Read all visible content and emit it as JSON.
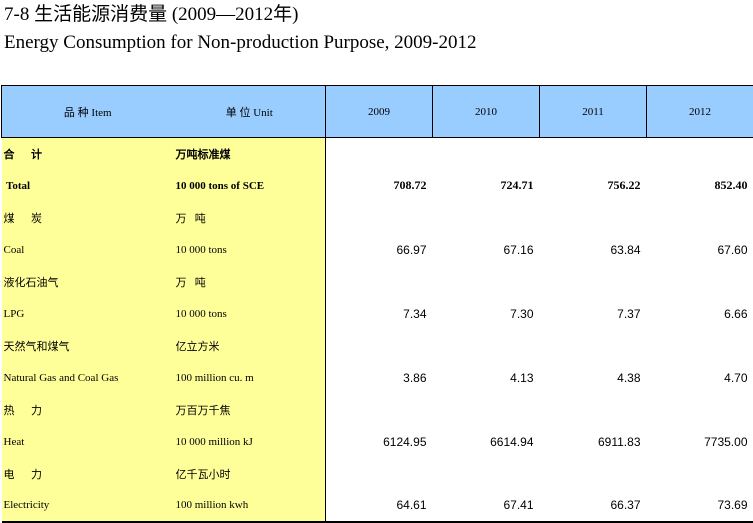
{
  "title_cn": "7-8  生活能源消费量 (2009—2012年)",
  "title_en": "Energy Consumption for Non-production Purpose, 2009-2012",
  "header": {
    "item": "品 种 Item",
    "unit": "单 位  Unit",
    "years": [
      "2009",
      "2010",
      "2011",
      "2012"
    ]
  },
  "rows": [
    {
      "item": "合      计",
      "unit": "万吨标准煤",
      "values": [
        "",
        "",
        "",
        ""
      ],
      "bold": true
    },
    {
      "item": " Total",
      "unit": "10 000 tons of SCE",
      "values": [
        "708.72",
        "724.71",
        "756.22",
        "852.40"
      ],
      "bold": true
    },
    {
      "item": "煤      炭",
      "unit": "万   吨",
      "values": [
        "",
        "",
        "",
        ""
      ]
    },
    {
      "item": "Coal",
      "unit": "10 000 tons",
      "values": [
        "66.97",
        "67.16",
        "63.84",
        "67.60"
      ]
    },
    {
      "item": "液化石油气",
      "unit": "万   吨",
      "values": [
        "",
        "",
        "",
        ""
      ]
    },
    {
      "item": "LPG",
      "unit": "10 000 tons",
      "values": [
        "7.34",
        "7.30",
        "7.37",
        "6.66"
      ]
    },
    {
      "item": "天然气和煤气",
      "unit": "亿立方米",
      "values": [
        "",
        "",
        "",
        ""
      ]
    },
    {
      "item": "Natural Gas and Coal Gas",
      "unit": "100 million cu. m",
      "values": [
        "3.86",
        "4.13",
        "4.38",
        "4.70"
      ]
    },
    {
      "item": "热      力",
      "unit": "万百万千焦",
      "values": [
        "",
        "",
        "",
        ""
      ]
    },
    {
      "item": "Heat",
      "unit": "10 000 million kJ",
      "values": [
        "6124.95",
        "6614.94",
        "6911.83",
        "7735.00"
      ]
    },
    {
      "item": "电      力",
      "unit": "亿千瓦小时",
      "values": [
        "",
        "",
        "",
        ""
      ]
    },
    {
      "item": "Electricity",
      "unit": "100 million kwh",
      "values": [
        "64.61",
        "67.41",
        "66.37",
        "73.69"
      ]
    }
  ]
}
